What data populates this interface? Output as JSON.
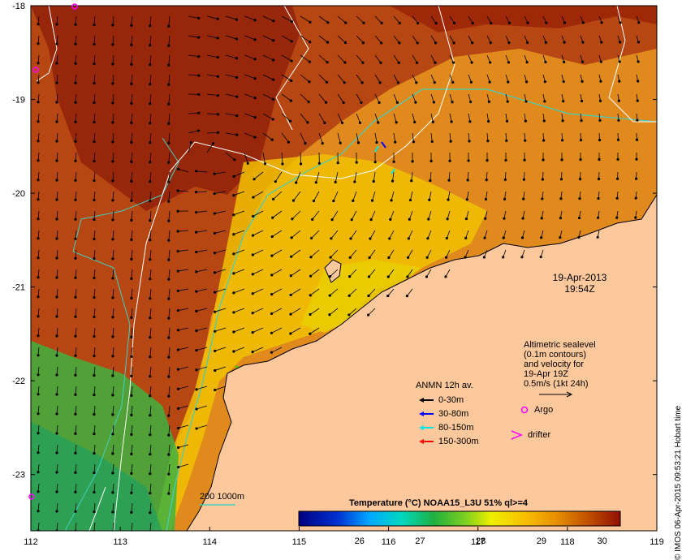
{
  "map": {
    "x_ticks": [
      "112",
      "113",
      "114",
      "115",
      "116",
      "117",
      "118",
      "119"
    ],
    "y_ticks": [
      "-18",
      "-19",
      "-20",
      "-21",
      "-22",
      "-23"
    ],
    "lon_range": [
      112,
      119
    ],
    "lat_range": [
      -23.6,
      -18
    ],
    "ocean_color": "#e08a1e",
    "land_color": "#fdc89b"
  },
  "date": {
    "line1": "19-Apr-2013",
    "line2": "19:54Z"
  },
  "altimetry": {
    "line1": "Altimetric sealevel",
    "line2": "(0.1m contours)",
    "line3": "and velocity for",
    "line4": "19-Apr 19Z",
    "line5": "0.5m/s (1kt 24h)"
  },
  "anmn": {
    "title": "ANMN 12h av.",
    "items": [
      {
        "label": "0-30m",
        "color": "#000000"
      },
      {
        "label": "30-80m",
        "color": "#0000ff"
      },
      {
        "label": "80-150m",
        "color": "#00e5e5"
      },
      {
        "label": "150-300m",
        "color": "#ff0000"
      }
    ]
  },
  "markers": {
    "argo": "Argo",
    "drifter": "drifter",
    "argo_color": "#ff00ff"
  },
  "colorbar": {
    "title": "Temperature (°C) NOAA15_L3U 51% ql>=4",
    "ticks": [
      "26",
      "27",
      "28",
      "29",
      "30"
    ],
    "range": [
      25,
      30.3
    ]
  },
  "isobath": {
    "label": "200  1000m",
    "color": "#40d0c0"
  },
  "credit": "© IMOS 06-Apr-2015 09:53:21 Hobart time"
}
